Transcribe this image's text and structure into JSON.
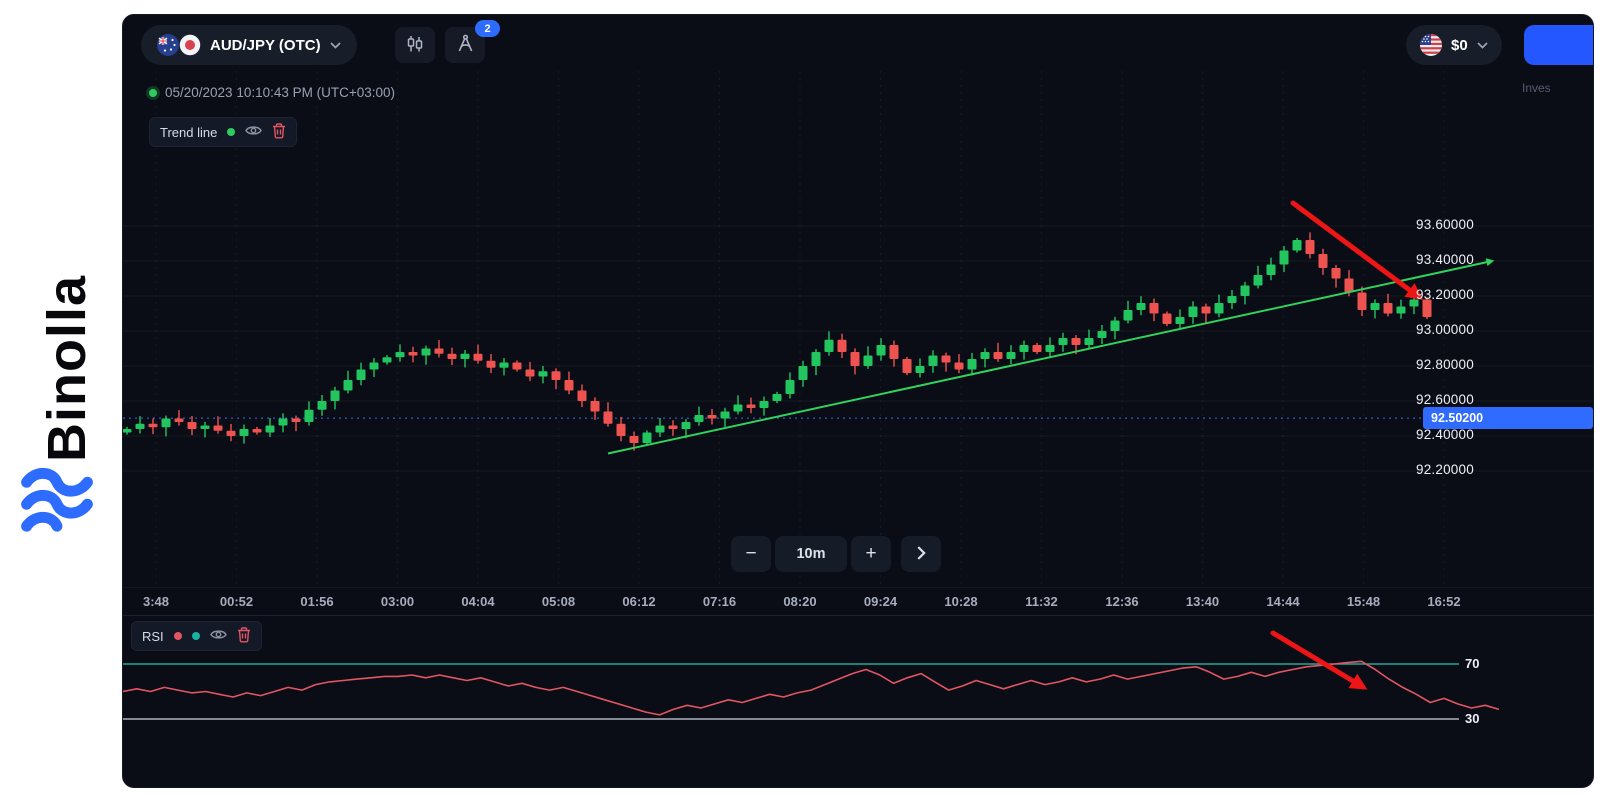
{
  "brand": {
    "name": "Binolla"
  },
  "toolbar": {
    "asset_label": "AUD/JPY (OTC)",
    "indicators_count": "2",
    "balance_label": "$0",
    "clipped_right_text": "Inves"
  },
  "status": {
    "timestamp": "05/20/2023 10:10:43 PM (UTC+03:00)"
  },
  "trend_tool": {
    "label": "Trend line"
  },
  "rsi_tool": {
    "label": "RSI"
  },
  "interval_controls": {
    "decrease": "−",
    "value": "10m",
    "increase": "+"
  },
  "current_price": {
    "text": "92.50200",
    "value": 92.502
  },
  "price_axis": {
    "ticks": [
      {
        "text": "93.60000",
        "value": 93.6
      },
      {
        "text": "93.40000",
        "value": 93.4
      },
      {
        "text": "93.20000",
        "value": 93.2
      },
      {
        "text": "93.00000",
        "value": 93.0
      },
      {
        "text": "92.80000",
        "value": 92.8
      },
      {
        "text": "92.60000",
        "value": 92.6
      },
      {
        "text": "92.40000",
        "value": 92.4
      },
      {
        "text": "92.20000",
        "value": 92.2
      }
    ]
  },
  "time_axis": {
    "ticks": [
      "3:48",
      "00:52",
      "01:56",
      "03:00",
      "04:04",
      "05:08",
      "06:12",
      "07:16",
      "08:20",
      "09:24",
      "10:28",
      "11:32",
      "12:36",
      "13:40",
      "14:44",
      "15:48",
      "16:52"
    ]
  },
  "rsi_axis": {
    "upper_label": "70",
    "lower_label": "30"
  },
  "chart_data": {
    "type": "candlestick",
    "symbol": "AUD/JPY (OTC)",
    "interval": "10m",
    "up_color": "#22c55e",
    "down_color": "#ef5350",
    "first_open": 92.42,
    "closes": [
      92.44,
      92.47,
      92.45,
      92.5,
      92.48,
      92.44,
      92.46,
      92.43,
      92.4,
      92.44,
      92.42,
      92.46,
      92.5,
      92.48,
      92.55,
      92.6,
      92.66,
      92.72,
      92.78,
      92.82,
      92.85,
      92.88,
      92.86,
      92.9,
      92.87,
      92.84,
      92.87,
      92.83,
      92.79,
      92.82,
      92.78,
      92.74,
      92.77,
      92.72,
      92.66,
      92.6,
      92.54,
      92.47,
      92.4,
      92.36,
      92.42,
      92.46,
      92.44,
      92.48,
      92.52,
      92.5,
      92.54,
      92.58,
      92.56,
      92.6,
      92.64,
      92.72,
      92.8,
      92.88,
      92.95,
      92.88,
      92.8,
      92.86,
      92.92,
      92.84,
      92.76,
      92.8,
      92.86,
      92.82,
      92.78,
      92.84,
      92.88,
      92.84,
      92.88,
      92.92,
      92.88,
      92.92,
      92.96,
      92.92,
      92.96,
      93.0,
      93.06,
      93.12,
      93.16,
      93.1,
      93.04,
      93.08,
      93.14,
      93.1,
      93.16,
      93.2,
      93.26,
      93.32,
      93.38,
      93.46,
      93.52,
      93.44,
      93.36,
      93.3,
      93.22,
      93.12,
      93.16,
      93.1,
      93.14,
      93.18,
      93.08
    ],
    "current_price": 92.502,
    "trend_line": {
      "start_index": 37,
      "start_price": 92.3,
      "end_index": 105,
      "end_price": 93.4,
      "color": "#2fd35d"
    },
    "rsi": {
      "upper": 70,
      "lower": 30,
      "line_color": "#e25563",
      "upper_line_color": "#26a69a",
      "lower_line_color": "#ced3dd",
      "values": [
        50,
        52,
        50,
        53,
        51,
        49,
        50,
        48,
        46,
        49,
        47,
        50,
        53,
        51,
        55,
        57,
        58,
        59,
        60,
        61,
        61,
        62,
        60,
        62,
        60,
        58,
        60,
        57,
        54,
        56,
        53,
        51,
        53,
        50,
        47,
        44,
        41,
        38,
        35,
        33,
        37,
        40,
        38,
        41,
        44,
        42,
        45,
        48,
        46,
        49,
        51,
        55,
        59,
        63,
        66,
        62,
        56,
        60,
        63,
        57,
        51,
        54,
        58,
        55,
        52,
        55,
        58,
        55,
        57,
        60,
        57,
        59,
        62,
        59,
        61,
        63,
        65,
        67,
        68,
        64,
        59,
        61,
        64,
        61,
        64,
        66,
        68,
        69,
        70,
        71,
        72,
        66,
        59,
        53,
        48,
        42,
        45,
        41,
        38,
        40,
        37
      ]
    },
    "annotations": [
      {
        "panel": "price",
        "from_xy": [
          1170,
          188
        ],
        "to_xy": [
          1296,
          282
        ],
        "color": "#ed1515"
      },
      {
        "panel": "rsi",
        "from_xy": [
          1150,
          618
        ],
        "to_xy": [
          1240,
          672
        ],
        "color": "#ed1515"
      }
    ]
  }
}
